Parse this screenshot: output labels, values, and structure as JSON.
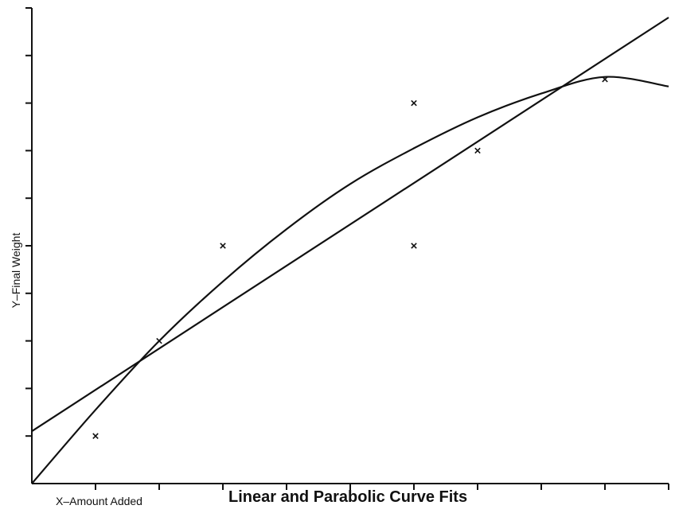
{
  "chart_data": {
    "type": "scatter",
    "title": "Linear and Parabolic Curve Fits",
    "xlabel": "X–Amount Added",
    "ylabel": "Y–Final Weight",
    "xlim": [
      0,
      10
    ],
    "ylim": [
      0,
      10
    ],
    "x_ticks": [
      1,
      2,
      3,
      4,
      5,
      6,
      7,
      8,
      9,
      10
    ],
    "y_ticks": [
      1,
      2,
      3,
      4,
      5,
      6,
      7,
      8,
      9,
      10
    ],
    "grid": false,
    "series": [
      {
        "kind": "points",
        "marker": "x",
        "x": [
          1,
          2,
          3,
          6,
          6,
          7,
          9
        ],
        "y": [
          1,
          3,
          5,
          8,
          5,
          7,
          8.5
        ]
      },
      {
        "kind": "line",
        "x": [
          0,
          10
        ],
        "y": [
          1.1,
          9.8
        ]
      },
      {
        "kind": "curve",
        "x": [
          0,
          1,
          2,
          3,
          4,
          5,
          6,
          7,
          8,
          9,
          10
        ],
        "y": [
          0,
          1.55,
          3.0,
          4.25,
          5.35,
          6.3,
          7.05,
          7.7,
          8.2,
          8.55,
          8.35
        ]
      }
    ]
  }
}
